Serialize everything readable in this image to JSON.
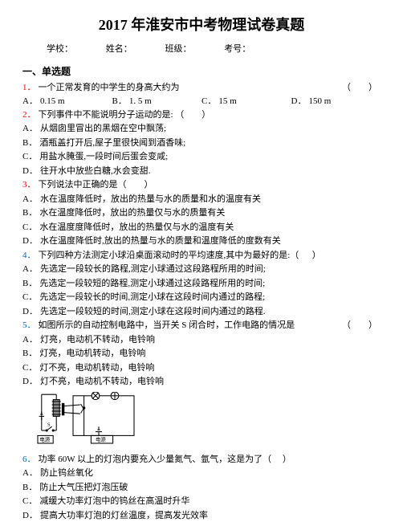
{
  "title": "2017 年淮安市中考物理试卷真题",
  "header": {
    "school": "学校：",
    "name": "姓名：",
    "class": "班级：",
    "examno": "考号："
  },
  "section1": "一、单选题",
  "questions": [
    {
      "num": "1．",
      "numColor": "red",
      "text": "一个正常发育的中学生的身高大约为",
      "tail": "（　　）",
      "opts_row": [
        {
          "l": "A．",
          "t": "0.15 m"
        },
        {
          "l": "B．",
          "t": "1. 5 m"
        },
        {
          "l": "C．",
          "t": "15 m"
        },
        {
          "l": "D．",
          "t": "150 m"
        }
      ]
    },
    {
      "num": "2．",
      "numColor": "red",
      "text": "下列事件中不能说明分子运动的是:  （　　）",
      "opts": [
        {
          "l": "A．",
          "t": "从烟囱里冒出的黑烟在空中飘荡;"
        },
        {
          "l": "B．",
          "t": "酒瓶盖打开后,屋子里很快闻到酒香味;"
        },
        {
          "l": "C．",
          "t": "用盐水腌蛋,一段时间后蛋会变咸;"
        },
        {
          "l": "D．",
          "t": "往开水中放些白糖,水会变甜."
        }
      ]
    },
    {
      "num": "3．",
      "numColor": "red",
      "text": "下列说法中正确的是（　　）",
      "opts": [
        {
          "l": "A．",
          "t": "水在温度降低时，放出的热量与水的质量和水的温度有关"
        },
        {
          "l": "B．",
          "t": "水在温度降低时，放出的热量仅与水的质量有关"
        },
        {
          "l": "C．",
          "t": "水在温度度降低时，放出的热量仅与水的温度有关"
        },
        {
          "l": "D．",
          "t": "水在温度降低时,放出的热量与水的质量和温度降低的度数有关"
        }
      ]
    },
    {
      "num": "4．",
      "numColor": "blue",
      "text": "下列四种方法测定小球沿桌面滚动时的平均速度,其中为最好的是:（ 　 ）",
      "opts": [
        {
          "l": "A．",
          "t": "先选定一段较长的路程,测定小球通过这段路程所用的时间;"
        },
        {
          "l": "B．",
          "t": "先选定一段较短的路程,测定小球通过这段路程所用的时间;"
        },
        {
          "l": "C．",
          "t": "先选定一段较长的时间,测定小球在这段时间内通过的路程;"
        },
        {
          "l": "D．",
          "t": "先选定一段较短的时间,测定小球在这段时间内通过的路程."
        }
      ]
    },
    {
      "num": "5．",
      "numColor": "blue",
      "text": "如图所示的自动控制电路中，当开关 S 闭合时，工作电路的情况是",
      "tail": "（　　）",
      "opts": [
        {
          "l": "A．",
          "t": "灯亮，电动机不转动，电铃响"
        },
        {
          "l": "B．",
          "t": "灯亮，电动机转动，电铃响"
        },
        {
          "l": "C．",
          "t": "灯不亮，电动机转动，电铃响"
        },
        {
          "l": "D．",
          "t": "灯不亮，电动机不转动，电铃响"
        }
      ],
      "circuit": true
    },
    {
      "num": "6．",
      "numColor": "blue",
      "text": "功率 60W 以上的灯泡内要充入少量氮气、氩气，这是为了（　 ）",
      "opts": [
        {
          "l": "A．",
          "t": "防止钨丝氧化"
        },
        {
          "l": "B．",
          "t": "防止大气压把灯泡压破"
        },
        {
          "l": "C．",
          "t": "减缓大功率灯泡中的钨丝在高温时升华"
        },
        {
          "l": "D．",
          "t": "提高大功率灯泡的灯丝温度，提高发光效率"
        }
      ]
    }
  ],
  "circuit_labels": {
    "ps1": "电源",
    "ps2": "电源",
    "s": "S"
  }
}
